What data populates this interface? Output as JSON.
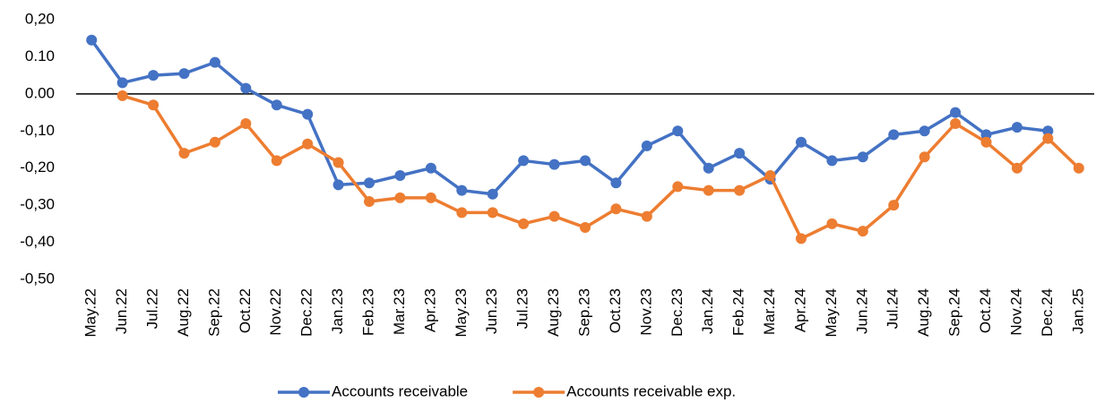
{
  "chart_data": {
    "type": "line",
    "categories": [
      "May.22",
      "Jun.22",
      "Jul.22",
      "Aug.22",
      "Sep.22",
      "Oct.22",
      "Nov.22",
      "Dec.22",
      "Jan.23",
      "Feb.23",
      "Mar.23",
      "Apr.23",
      "May.23",
      "Jun.23",
      "Jul.23",
      "Aug.23",
      "Sep.23",
      "Oct.23",
      "Nov.23",
      "Dec.23",
      "Jan.24",
      "Feb.24",
      "Mar.24",
      "Apr.24",
      "May.24",
      "Jun.24",
      "Jul.24",
      "Aug.24",
      "Sep.24",
      "Oct.24",
      "Nov.24",
      "Dec.24",
      "Jan.25"
    ],
    "series": [
      {
        "name": "Accounts receivable",
        "color": "#4472c4",
        "values": [
          0.145,
          0.03,
          0.05,
          0.055,
          0.085,
          0.015,
          -0.03,
          -0.055,
          -0.245,
          -0.24,
          -0.22,
          -0.2,
          -0.26,
          -0.27,
          -0.18,
          -0.19,
          -0.18,
          -0.24,
          -0.14,
          -0.1,
          -0.2,
          -0.16,
          -0.23,
          -0.13,
          -0.18,
          -0.17,
          -0.11,
          -0.1,
          -0.05,
          -0.11,
          -0.09,
          -0.1,
          null
        ]
      },
      {
        "name": "Accounts receivable exp.",
        "color": "#ed7d31",
        "values": [
          null,
          -0.005,
          -0.03,
          -0.16,
          -0.13,
          -0.08,
          -0.18,
          -0.135,
          -0.185,
          -0.29,
          -0.28,
          -0.28,
          -0.32,
          -0.32,
          -0.35,
          -0.33,
          -0.36,
          -0.31,
          -0.33,
          -0.25,
          -0.26,
          -0.26,
          -0.22,
          -0.39,
          -0.35,
          -0.37,
          -0.3,
          -0.17,
          -0.08,
          -0.13,
          -0.2,
          -0.12,
          -0.2
        ]
      }
    ],
    "ylim": [
      -0.5,
      0.2
    ],
    "yticks": [
      {
        "value": 0.2,
        "label": "0,20"
      },
      {
        "value": 0.1,
        "label": "0.10"
      },
      {
        "value": 0,
        "label": "0.00"
      },
      {
        "value": -0.1,
        "label": "-0,10"
      },
      {
        "value": -0.2,
        "label": "-0,20"
      },
      {
        "value": -0.3,
        "label": "-0,30"
      },
      {
        "value": -0.4,
        "label": "-0,40"
      },
      {
        "value": -0.5,
        "label": "-0,50"
      }
    ],
    "grid": false,
    "legend": "bottom"
  }
}
